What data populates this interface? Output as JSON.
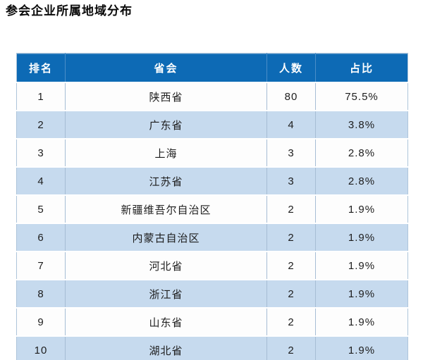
{
  "page": {
    "title": "参会企业所属地域分布"
  },
  "table": {
    "columns": [
      "排名",
      "省会",
      "人数",
      "占比"
    ],
    "rows": [
      [
        "1",
        "陕西省",
        "80",
        "75.5%"
      ],
      [
        "2",
        "广东省",
        "4",
        "3.8%"
      ],
      [
        "3",
        "上海",
        "3",
        "2.8%"
      ],
      [
        "4",
        "江苏省",
        "3",
        "2.8%"
      ],
      [
        "5",
        "新疆维吾尔自治区",
        "2",
        "1.9%"
      ],
      [
        "6",
        "内蒙古自治区",
        "2",
        "1.9%"
      ],
      [
        "7",
        "河北省",
        "2",
        "1.9%"
      ],
      [
        "8",
        "浙江省",
        "2",
        "1.9%"
      ],
      [
        "9",
        "山东省",
        "2",
        "1.9%"
      ],
      [
        "10",
        "湖北省",
        "2",
        "1.9%"
      ]
    ]
  },
  "colors": {
    "header_bg": "#0d6ab5",
    "header_text": "#ffffff",
    "header_divider": "#4a8ec8",
    "row_bg": "#fdfdfd",
    "row_alt_bg": "#c6daee",
    "inner_border": "#a6bdd5",
    "outer_border": "#aec5da",
    "cell_text": "#1d1d1d"
  },
  "chart_data": {
    "type": "table",
    "title": "参会企业所属地域分布",
    "columns": [
      "排名",
      "省会",
      "人数",
      "占比"
    ],
    "rows": [
      {
        "rank": 1,
        "region": "陕西省",
        "count": 80,
        "share_pct": 75.5
      },
      {
        "rank": 2,
        "region": "广东省",
        "count": 4,
        "share_pct": 3.8
      },
      {
        "rank": 3,
        "region": "上海",
        "count": 3,
        "share_pct": 2.8
      },
      {
        "rank": 4,
        "region": "江苏省",
        "count": 3,
        "share_pct": 2.8
      },
      {
        "rank": 5,
        "region": "新疆维吾尔自治区",
        "count": 2,
        "share_pct": 1.9
      },
      {
        "rank": 6,
        "region": "内蒙古自治区",
        "count": 2,
        "share_pct": 1.9
      },
      {
        "rank": 7,
        "region": "河北省",
        "count": 2,
        "share_pct": 1.9
      },
      {
        "rank": 8,
        "region": "浙江省",
        "count": 2,
        "share_pct": 1.9
      },
      {
        "rank": 9,
        "region": "山东省",
        "count": 2,
        "share_pct": 1.9
      },
      {
        "rank": 10,
        "region": "湖北省",
        "count": 2,
        "share_pct": 1.9
      }
    ]
  }
}
